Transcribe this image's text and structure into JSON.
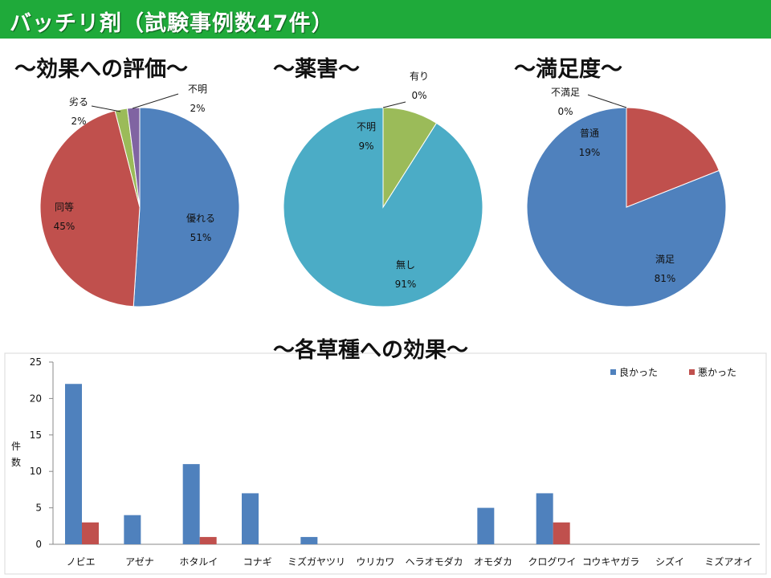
{
  "header": {
    "title": "バッチリ剤（試験事例数47件）"
  },
  "colors": {
    "header_bg": "#1faa3a",
    "blue": "#4f81bd",
    "red": "#c0504d",
    "green": "#9bbb59",
    "purple": "#8064a2",
    "teal": "#4bacc6"
  },
  "chart_data": [
    {
      "type": "pie",
      "title": "～効果への評価～",
      "slices": [
        {
          "label": "優れる",
          "value": 51,
          "pct_label": "51%",
          "color": "#4f81bd"
        },
        {
          "label": "同等",
          "value": 45,
          "pct_label": "45%",
          "color": "#c0504d"
        },
        {
          "label": "劣る",
          "value": 2,
          "pct_label": "2%",
          "color": "#9bbb59"
        },
        {
          "label": "不明",
          "value": 2,
          "pct_label": "2%",
          "color": "#8064a2"
        }
      ]
    },
    {
      "type": "pie",
      "title": "～薬害～",
      "slices": [
        {
          "label": "無し",
          "value": 91,
          "pct_label": "91%",
          "color": "#4bacc6"
        },
        {
          "label": "不明",
          "value": 9,
          "pct_label": "9%",
          "color": "#9bbb59"
        },
        {
          "label": "有り",
          "value": 0,
          "pct_label": "0%",
          "color": "#c0504d"
        }
      ]
    },
    {
      "type": "pie",
      "title": "～満足度～",
      "slices": [
        {
          "label": "満足",
          "value": 81,
          "pct_label": "81%",
          "color": "#4f81bd"
        },
        {
          "label": "普通",
          "value": 19,
          "pct_label": "19%",
          "color": "#c0504d"
        },
        {
          "label": "不満足",
          "value": 0,
          "pct_label": "0%",
          "color": "#9bbb59"
        }
      ]
    },
    {
      "type": "bar",
      "title": "～各草種への効果～",
      "ylabel": "件数",
      "ylim": [
        0,
        25
      ],
      "yticks": [
        0,
        5,
        10,
        15,
        20,
        25
      ],
      "categories": [
        "ノビエ",
        "アゼナ",
        "ホタルイ",
        "コナギ",
        "ミズガヤツリ",
        "ウリカワ",
        "ヘラオモダカ",
        "オモダカ",
        "クログワイ",
        "コウキヤガラ",
        "シズイ",
        "ミズアオイ"
      ],
      "series": [
        {
          "name": "良かった",
          "color": "#4f81bd",
          "values": [
            22,
            4,
            11,
            7,
            1,
            0,
            0,
            5,
            7,
            0,
            0,
            0
          ]
        },
        {
          "name": "悪かった",
          "color": "#c0504d",
          "values": [
            3,
            0,
            1,
            0,
            0,
            0,
            0,
            0,
            3,
            0,
            0,
            0
          ]
        }
      ],
      "legend_position": "top-right",
      "grid": false
    }
  ]
}
